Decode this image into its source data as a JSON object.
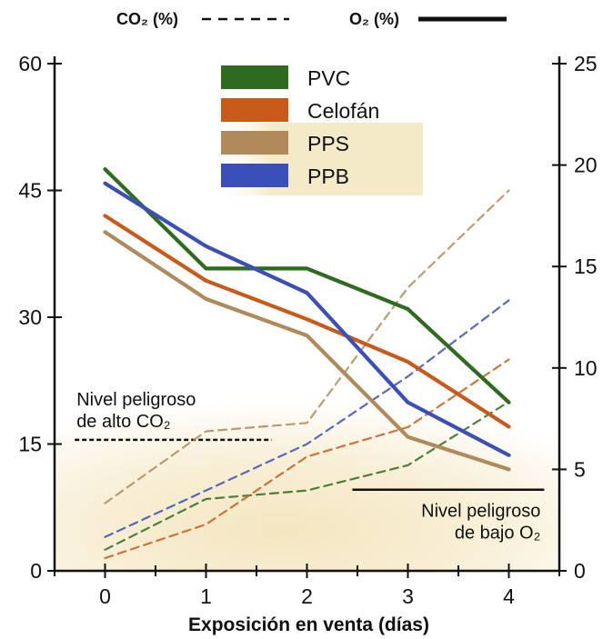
{
  "chart_data": {
    "type": "line",
    "xlabel": "Exposición en venta (días)",
    "x_ticks": [
      "0",
      "1",
      "2",
      "3",
      "4"
    ],
    "x": [
      0,
      1,
      2,
      3,
      4
    ],
    "xlim": [
      -0.5,
      4.5
    ],
    "ylim_left": [
      0,
      60
    ],
    "left_ticks": [
      "0",
      "15",
      "30",
      "45",
      "60"
    ],
    "ylim_right": [
      0,
      25
    ],
    "right_ticks": [
      "0",
      "5",
      "10",
      "15",
      "20",
      "25"
    ],
    "header": {
      "co2_label": "CO₂ (%)",
      "o2_label": "O₂ (%)"
    },
    "legend": [
      "PVC",
      "Celofán",
      "PPS",
      "PPB"
    ],
    "colors": {
      "PVC": "#2e6b1f",
      "Celofán": "#c85a1a",
      "PPS": "#b08a5a",
      "PPB": "#3a4fb8"
    },
    "series": [
      {
        "name": "PVC",
        "metric": "O2",
        "axis": "right",
        "values": [
          19.8,
          14.9,
          14.9,
          12.9,
          8.3
        ]
      },
      {
        "name": "Celofán",
        "metric": "O2",
        "axis": "right",
        "values": [
          17.5,
          14.3,
          12.4,
          10.3,
          7.1
        ]
      },
      {
        "name": "PPS",
        "metric": "O2",
        "axis": "right",
        "values": [
          16.7,
          13.4,
          11.6,
          6.6,
          5.0
        ]
      },
      {
        "name": "PPB",
        "metric": "O2",
        "axis": "right",
        "values": [
          19.1,
          16.0,
          13.7,
          8.3,
          5.7
        ]
      },
      {
        "name": "PVC",
        "metric": "CO2",
        "axis": "left",
        "values": [
          2.5,
          8.5,
          9.5,
          12.5,
          20.0
        ]
      },
      {
        "name": "Celofán",
        "metric": "CO2",
        "axis": "left",
        "values": [
          1.5,
          5.5,
          13.5,
          17.0,
          25.0
        ]
      },
      {
        "name": "PPS",
        "metric": "CO2",
        "axis": "left",
        "values": [
          8.0,
          16.5,
          17.5,
          33.5,
          45.0
        ]
      },
      {
        "name": "PPB",
        "metric": "CO2",
        "axis": "left",
        "values": [
          4.0,
          9.5,
          15.0,
          23.0,
          32.0
        ]
      }
    ],
    "thresholds": {
      "co2": {
        "value": 15.5,
        "axis": "left",
        "x_range": [
          -0.3,
          1.65
        ],
        "label_line1": "Nivel peligroso",
        "label_line2": "de alto CO₂"
      },
      "o2": {
        "value": 4.0,
        "axis": "right",
        "x_range": [
          2.45,
          4.35
        ],
        "label_line1": "Nivel peligroso",
        "label_line2": "de bajo O₂"
      }
    }
  }
}
